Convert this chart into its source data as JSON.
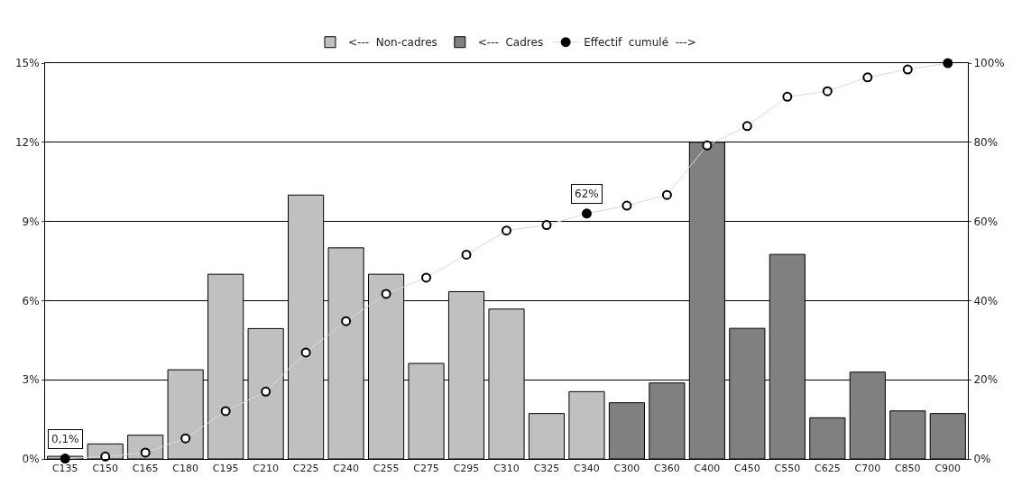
{
  "chart_data": {
    "type": "bar",
    "categories": [
      "C135",
      "C150",
      "C165",
      "C180",
      "C195",
      "C210",
      "C225",
      "C240",
      "C255",
      "C275",
      "C295",
      "C310",
      "C325",
      "C340",
      "C300",
      "C360",
      "C400",
      "C450",
      "C550",
      "C625",
      "C700",
      "C850",
      "C900"
    ],
    "series": [
      {
        "name": "<---  Non-cadres",
        "color": "#c0c0c0",
        "values": [
          0.1,
          0.57,
          0.9,
          3.38,
          7.0,
          4.94,
          10.0,
          8.0,
          7.0,
          3.62,
          6.34,
          5.68,
          1.72,
          2.55,
          null,
          null,
          null,
          null,
          null,
          null,
          null,
          null,
          null
        ]
      },
      {
        "name": "<---  Cadres",
        "color": "#808080",
        "values": [
          null,
          null,
          null,
          null,
          null,
          null,
          null,
          null,
          null,
          null,
          null,
          null,
          null,
          null,
          2.13,
          2.88,
          12.0,
          4.95,
          7.75,
          1.56,
          3.29,
          1.82,
          1.72
        ]
      },
      {
        "name": "Effectif  cumulé  --->",
        "type": "line",
        "axis": "y2",
        "color": "#d9d9d9",
        "marker": "circle",
        "colors": [
          "#000000",
          "#ffffff",
          "#ffffff",
          "#ffffff",
          "#ffffff",
          "#ffffff",
          "#ffffff",
          "#ffffff",
          "#ffffff",
          "#ffffff",
          "#ffffff",
          "#ffffff",
          "#ffffff",
          "#000000",
          "#ffffff",
          "#ffffff",
          "#ffffff",
          "#ffffff",
          "#ffffff",
          "#ffffff",
          "#ffffff",
          "#ffffff",
          "#000000"
        ],
        "value_labels": [
          "0,1%",
          null,
          null,
          null,
          null,
          null,
          null,
          null,
          null,
          null,
          null,
          null,
          null,
          "62%",
          null,
          null,
          null,
          null,
          null,
          null,
          null,
          null,
          null
        ],
        "values": [
          0.1,
          0.6,
          1.6,
          5.2,
          12.1,
          17.0,
          26.9,
          34.8,
          41.7,
          45.8,
          51.6,
          57.7,
          59.1,
          62,
          64.0,
          66.7,
          79.2,
          84.1,
          91.5,
          92.9,
          96.4,
          98.4,
          100
        ]
      }
    ],
    "ylim": [
      0,
      15
    ],
    "yticks": [
      {
        "value": 0,
        "label": "0%"
      },
      {
        "value": 3,
        "label": "3%"
      },
      {
        "value": 6,
        "label": "6%"
      },
      {
        "value": 9,
        "label": "9%"
      },
      {
        "value": 12,
        "label": "12%"
      },
      {
        "value": 15,
        "label": "15%"
      }
    ],
    "y2lim": [
      0,
      100
    ],
    "y2ticks": [
      {
        "value": 0,
        "label": "0%"
      },
      {
        "value": 20,
        "label": "20%"
      },
      {
        "value": 40,
        "label": "40%"
      },
      {
        "value": 60,
        "label": "60%"
      },
      {
        "value": 80,
        "label": "80%"
      },
      {
        "value": 100,
        "label": "100%"
      }
    ],
    "grid": "y",
    "legend": "top"
  }
}
